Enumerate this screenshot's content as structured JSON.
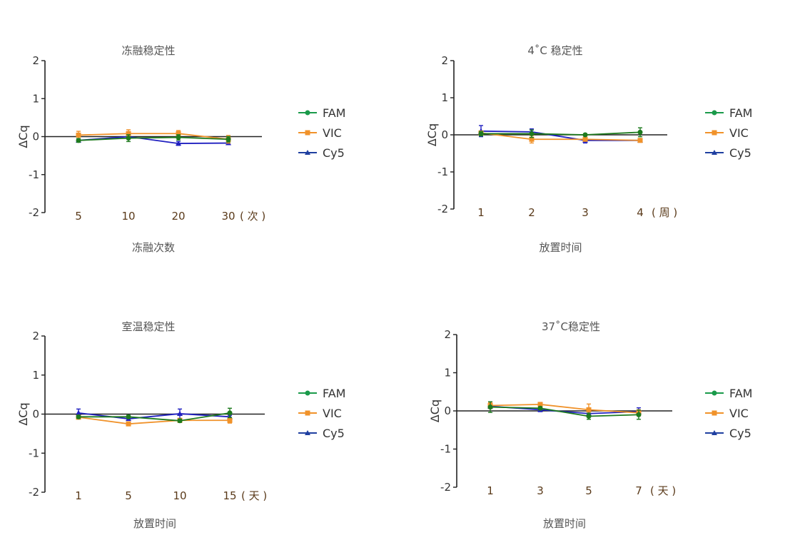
{
  "colors": {
    "FAM": "#1a9a4a",
    "VIC": "#f0922a",
    "Cy5": "#1f3fa0",
    "axis": "#222222",
    "text": "#555555"
  },
  "legend": [
    "FAM",
    "VIC",
    "Cy5"
  ],
  "chart_data": [
    {
      "type": "line",
      "title": "冻融稳定性",
      "xlabel": "冻融次数",
      "ylabel": "ΔCq",
      "x_unit": "( 次 )",
      "categories": [
        "5",
        "10",
        "20",
        "30"
      ],
      "ylim": [
        -2,
        2
      ],
      "yticks": [
        2,
        1,
        0,
        -1,
        -2
      ],
      "legend_position": "right",
      "series": [
        {
          "name": "FAM",
          "marker": "circle",
          "values": [
            -0.1,
            -0.04,
            -0.02,
            -0.07
          ],
          "errors": [
            0.05,
            0.09,
            0.07,
            0.07
          ]
        },
        {
          "name": "VIC",
          "marker": "square",
          "values": [
            0.04,
            0.08,
            0.08,
            -0.07
          ],
          "errors": [
            0.1,
            0.1,
            0.08,
            0.1
          ]
        },
        {
          "name": "Cy5",
          "marker": "triangle",
          "values": [
            -0.1,
            0.0,
            -0.18,
            -0.17
          ],
          "errors": [
            0.04,
            0.04,
            0.05,
            0.04
          ]
        }
      ]
    },
    {
      "type": "line",
      "title": "4˚C 稳定性",
      "xlabel": "放置时间",
      "ylabel": "ΔCq",
      "x_unit": "( 周 )",
      "categories": [
        "1",
        "2",
        "3",
        "4"
      ],
      "ylim": [
        -2,
        2
      ],
      "yticks": [
        2,
        1,
        0,
        -1,
        -2
      ],
      "legend_position": "right",
      "series": [
        {
          "name": "FAM",
          "marker": "circle",
          "values": [
            0.03,
            0.03,
            0.0,
            0.07
          ],
          "errors": [
            0.06,
            0.1,
            0.03,
            0.12
          ]
        },
        {
          "name": "VIC",
          "marker": "square",
          "values": [
            0.05,
            -0.12,
            -0.12,
            -0.15
          ],
          "errors": [
            0.04,
            0.1,
            0.05,
            0.05
          ]
        },
        {
          "name": "Cy5",
          "marker": "triangle",
          "values": [
            0.1,
            0.08,
            -0.15,
            -0.15
          ],
          "errors": [
            0.15,
            0.08,
            0.07,
            0.04
          ]
        }
      ]
    },
    {
      "type": "line",
      "title": "室温稳定性",
      "xlabel": "放置时间",
      "ylabel": "ΔCq",
      "x_unit": "( 天 )",
      "categories": [
        "1",
        "5",
        "10",
        "15"
      ],
      "ylim": [
        -2,
        2
      ],
      "yticks": [
        2,
        1,
        0,
        -1,
        -2
      ],
      "legend_position": "right",
      "series": [
        {
          "name": "FAM",
          "marker": "circle",
          "values": [
            -0.07,
            -0.07,
            -0.17,
            0.03
          ],
          "errors": [
            0.04,
            0.04,
            0.04,
            0.12
          ]
        },
        {
          "name": "VIC",
          "marker": "square",
          "values": [
            -0.08,
            -0.25,
            -0.16,
            -0.16
          ],
          "errors": [
            0.03,
            0.03,
            0.04,
            0.07
          ]
        },
        {
          "name": "Cy5",
          "marker": "triangle",
          "values": [
            0.03,
            -0.12,
            0.01,
            -0.07
          ],
          "errors": [
            0.1,
            0.04,
            0.12,
            0.04
          ]
        }
      ]
    },
    {
      "type": "line",
      "title": "37˚C稳定性",
      "xlabel": "放置时间",
      "ylabel": "ΔCq",
      "x_unit": "( 天 )",
      "categories": [
        "1",
        "3",
        "5",
        "7"
      ],
      "ylim": [
        -2,
        2
      ],
      "yticks": [
        2,
        1,
        0,
        -1,
        -2
      ],
      "legend_position": "right",
      "series": [
        {
          "name": "FAM",
          "marker": "circle",
          "values": [
            0.1,
            0.07,
            -0.14,
            -0.1
          ],
          "errors": [
            0.14,
            0.04,
            0.08,
            0.12
          ]
        },
        {
          "name": "VIC",
          "marker": "square",
          "values": [
            0.14,
            0.17,
            0.03,
            -0.05
          ],
          "errors": [
            0.08,
            0.05,
            0.15,
            0.08
          ]
        },
        {
          "name": "Cy5",
          "marker": "triangle",
          "values": [
            0.12,
            0.03,
            -0.07,
            -0.02
          ],
          "errors": [
            0.06,
            0.05,
            0.05,
            0.1
          ]
        }
      ]
    }
  ]
}
